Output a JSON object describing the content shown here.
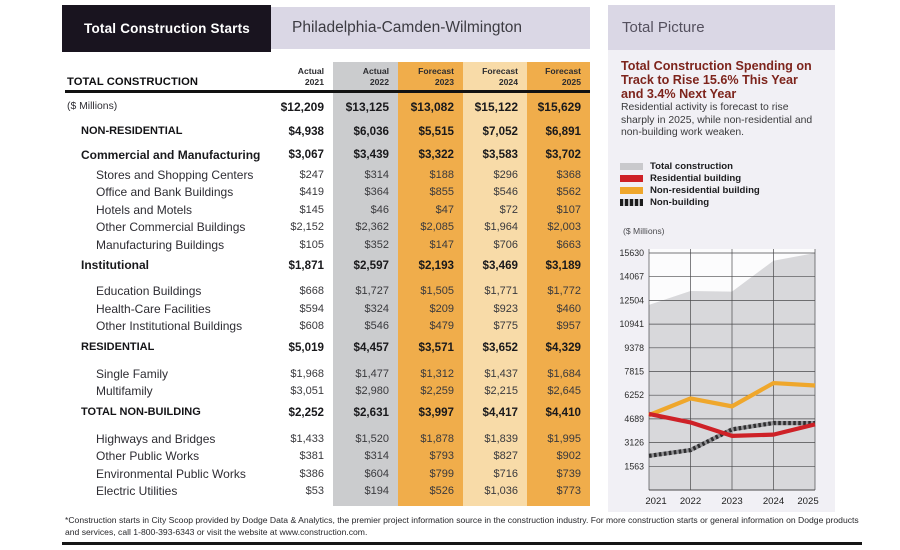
{
  "header": {
    "title": "Total Construction Starts",
    "region": "Philadelphia-Camden-Wilmington"
  },
  "table": {
    "corner_label": "TOTAL CONSTRUCTION",
    "columns": [
      {
        "label": "Actual",
        "year": "2021",
        "bg": null
      },
      {
        "label": "Actual",
        "year": "2022",
        "bg": "#cbccce"
      },
      {
        "label": "Forecast",
        "year": "2023",
        "bg": "#f0ad4b"
      },
      {
        "label": "Forecast",
        "year": "2024",
        "bg": "#f8dba8"
      },
      {
        "label": "Forecast",
        "year": "2025",
        "bg": "#f0ad4b"
      }
    ],
    "rows": [
      {
        "label": "($ Millions)",
        "type": "total",
        "values": [
          "$12,209",
          "$13,125",
          "$13,082",
          "$15,122",
          "$15,629"
        ]
      },
      {
        "label": "NON-RESIDENTIAL",
        "type": "section",
        "values": [
          "$4,938",
          "$6,036",
          "$5,515",
          "$7,052",
          "$6,891"
        ]
      },
      {
        "label": "Commercial and Manufacturing",
        "type": "group",
        "values": [
          "$3,067",
          "$3,439",
          "$3,322",
          "$3,583",
          "$3,702"
        ]
      },
      {
        "label": "Stores and Shopping Centers",
        "type": "item",
        "values": [
          "$247",
          "$314",
          "$188",
          "$296",
          "$368"
        ]
      },
      {
        "label": "Office and Bank Buildings",
        "type": "item",
        "values": [
          "$419",
          "$364",
          "$855",
          "$546",
          "$562"
        ]
      },
      {
        "label": "Hotels and Motels",
        "type": "item",
        "values": [
          "$145",
          "$46",
          "$47",
          "$72",
          "$107"
        ]
      },
      {
        "label": "Other Commercial Buildings",
        "type": "item",
        "values": [
          "$2,152",
          "$2,362",
          "$2,085",
          "$1,964",
          "$2,003"
        ]
      },
      {
        "label": "Manufacturing Buildings",
        "type": "item",
        "values": [
          "$105",
          "$352",
          "$147",
          "$706",
          "$663"
        ]
      },
      {
        "label": "Institutional",
        "type": "group",
        "values": [
          "$1,871",
          "$2,597",
          "$2,193",
          "$3,469",
          "$3,189"
        ]
      },
      {
        "label": "Education Buildings",
        "type": "item",
        "gap": true,
        "values": [
          "$668",
          "$1,727",
          "$1,505",
          "$1,771",
          "$1,772"
        ]
      },
      {
        "label": "Health-Care Facilities",
        "type": "item",
        "values": [
          "$594",
          "$324",
          "$209",
          "$923",
          "$460"
        ]
      },
      {
        "label": "Other Institutional Buildings",
        "type": "item",
        "values": [
          "$608",
          "$546",
          "$479",
          "$775",
          "$957"
        ]
      },
      {
        "label": "RESIDENTIAL",
        "type": "section",
        "values": [
          "$5,019",
          "$4,457",
          "$3,571",
          "$3,652",
          "$4,329"
        ]
      },
      {
        "label": "Single Family",
        "type": "item",
        "gap": true,
        "values": [
          "$1,968",
          "$1,477",
          "$1,312",
          "$1,437",
          "$1,684"
        ]
      },
      {
        "label": "Multifamily",
        "type": "item",
        "values": [
          "$3,051",
          "$2,980",
          "$2,259",
          "$2,215",
          "$2,645"
        ]
      },
      {
        "label": "TOTAL NON-BUILDING",
        "type": "section",
        "values": [
          "$2,252",
          "$2,631",
          "$3,997",
          "$4,417",
          "$4,410"
        ]
      },
      {
        "label": "Highways and Bridges",
        "type": "item",
        "gap": true,
        "values": [
          "$1,433",
          "$1,520",
          "$1,878",
          "$1,839",
          "$1,995"
        ]
      },
      {
        "label": "Other Public Works",
        "type": "item",
        "values": [
          "$381",
          "$314",
          "$793",
          "$827",
          "$902"
        ]
      },
      {
        "label": "Environmental Public Works",
        "type": "item",
        "values": [
          "$386",
          "$604",
          "$799",
          "$716",
          "$739"
        ]
      },
      {
        "label": "Electric Utilities",
        "type": "item",
        "values": [
          "$53",
          "$194",
          "$526",
          "$1,036",
          "$773"
        ]
      }
    ]
  },
  "panel": {
    "title": "Total Picture",
    "headline": "Total Construction Spending on Track to Rise 15.6% This Year and 3.4% Next Year",
    "body": "Residential activity is forecast to rise sharply in 2025, while non-residential and non-building work weaken."
  },
  "chart_data": {
    "type": "line",
    "units": "($ Millions)",
    "x": [
      "2021",
      "2022",
      "2023",
      "2024",
      "2025"
    ],
    "ylim": [
      0,
      15630
    ],
    "yticks": [
      1563,
      3126,
      4689,
      6252,
      7815,
      9378,
      10941,
      12504,
      14067,
      15630
    ],
    "grid": true,
    "grid_color": "#4a4a4c",
    "legend_position": "top",
    "legend": [
      {
        "name": "Total construction",
        "color": "#c9c9cc",
        "pattern": "solid"
      },
      {
        "name": "Residential building",
        "color": "#ce2127",
        "pattern": "solid"
      },
      {
        "name": "Non-residential building",
        "color": "#efa72c",
        "pattern": "solid"
      },
      {
        "name": "Non-building",
        "color": "#1c1c1c",
        "pattern": "dashed"
      }
    ],
    "series": [
      {
        "name": "Total construction",
        "type": "area",
        "color": "#d8d8db",
        "values": [
          12209,
          13125,
          13082,
          15122,
          15629
        ]
      },
      {
        "name": "Non-building",
        "type": "line",
        "color": "#939396",
        "dash_color": "#2e2e30",
        "values": [
          2252,
          2631,
          3997,
          4417,
          4410
        ]
      },
      {
        "name": "Non-residential building",
        "type": "line",
        "color": "#efa72c",
        "values": [
          4938,
          6036,
          5515,
          7052,
          6891
        ]
      },
      {
        "name": "Residential building",
        "type": "line",
        "color": "#ce2127",
        "values": [
          5019,
          4457,
          3571,
          3652,
          4329
        ]
      }
    ]
  },
  "footnote": {
    "text": "*Construction starts in City Scoop provided by Dodge Data & Analytics, the premier project information source in the construction industry. For more construction starts or general information on Dodge products and services, call 1-800-393-6343 or visit the website at www.construction.com."
  }
}
